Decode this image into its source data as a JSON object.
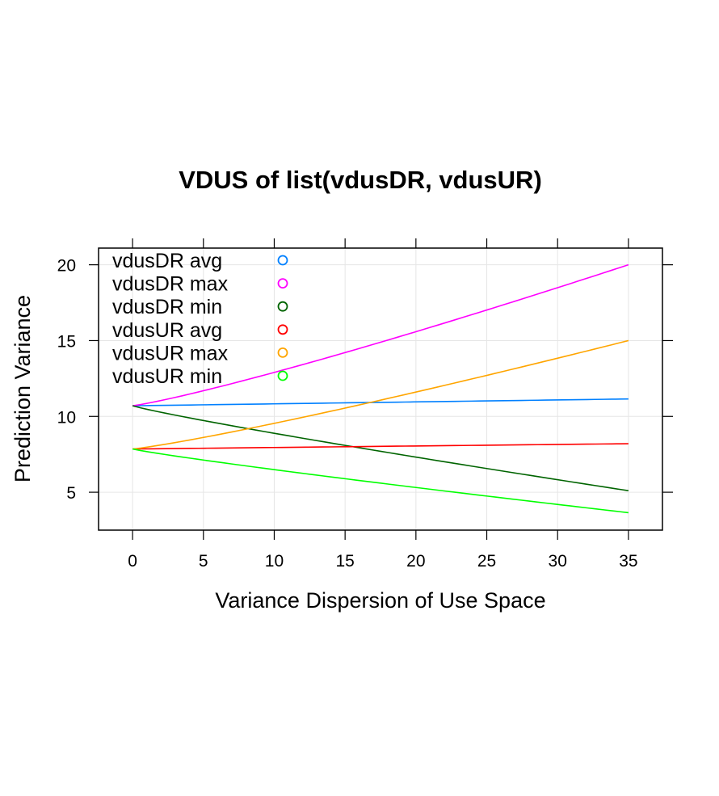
{
  "chart_data": {
    "type": "line",
    "title": "VDUS of list(vdusDR, vdusUR)",
    "xlabel": "Variance Dispersion of Use Space",
    "ylabel": "Prediction Variance",
    "xlim": [
      -2.4,
      37.4
    ],
    "ylim": [
      2.5,
      21.1
    ],
    "x_ticks": [
      0,
      5,
      10,
      15,
      20,
      25,
      30,
      35
    ],
    "y_ticks": [
      5,
      10,
      15,
      20
    ],
    "grid": true,
    "legend_position": "top-left",
    "series": [
      {
        "name": "vdusDR avg",
        "color": "#0080ff",
        "x": [
          0,
          35
        ],
        "y": [
          10.7,
          11.15
        ],
        "curve": 1.0
      },
      {
        "name": "vdusDR max",
        "color": "#ff00ff",
        "x": [
          0,
          35
        ],
        "y": [
          10.7,
          20.0
        ],
        "curve": 1.15
      },
      {
        "name": "vdusDR min",
        "color": "#006400",
        "x": [
          0,
          35
        ],
        "y": [
          10.7,
          5.1
        ],
        "curve": 0.9
      },
      {
        "name": "vdusUR avg",
        "color": "#ff0000",
        "x": [
          0,
          35
        ],
        "y": [
          7.85,
          8.2
        ],
        "curve": 1.0
      },
      {
        "name": "vdusUR max",
        "color": "#ffa500",
        "x": [
          0,
          35
        ],
        "y": [
          7.85,
          15.0
        ],
        "curve": 1.15
      },
      {
        "name": "vdusUR min",
        "color": "#00ff00",
        "x": [
          0,
          35
        ],
        "y": [
          7.85,
          3.65
        ],
        "curve": 0.9
      }
    ]
  }
}
